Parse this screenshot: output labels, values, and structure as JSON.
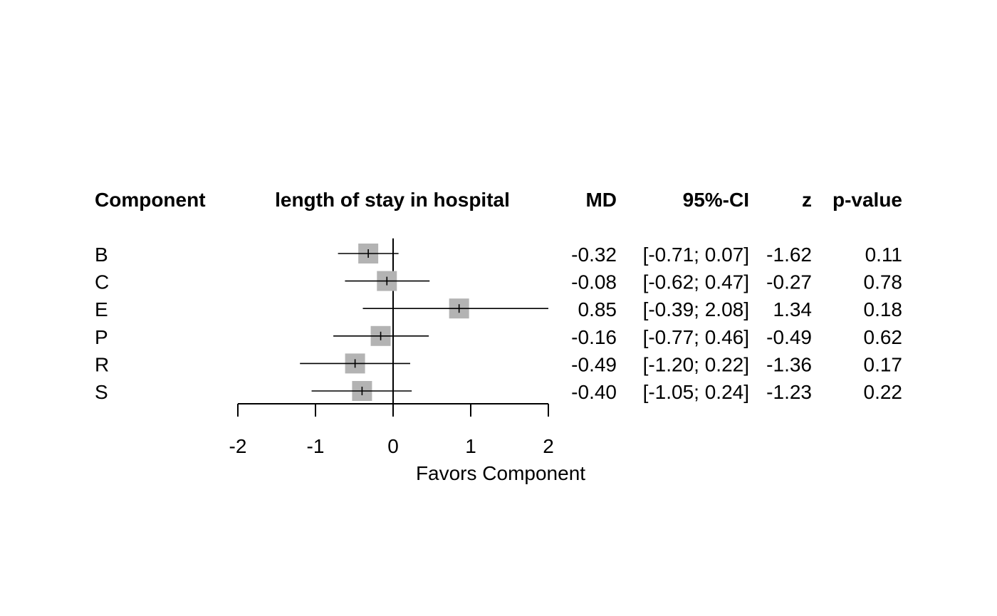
{
  "chart_data": {
    "type": "forest",
    "headers": {
      "component": "Component",
      "outcome": "length of stay in hospital",
      "md": "MD",
      "ci": "95%-CI",
      "z": "z",
      "p": "p-value"
    },
    "rows": [
      {
        "label": "B",
        "md": -0.32,
        "lower": -0.71,
        "upper": 0.07,
        "md_text": "-0.32",
        "ci_text": "[-0.71; 0.07]",
        "z_text": "-1.62",
        "p_text": "0.11"
      },
      {
        "label": "C",
        "md": -0.08,
        "lower": -0.62,
        "upper": 0.47,
        "md_text": "-0.08",
        "ci_text": "[-0.62; 0.47]",
        "z_text": "-0.27",
        "p_text": "0.78"
      },
      {
        "label": "E",
        "md": 0.85,
        "lower": -0.39,
        "upper": 2.08,
        "md_text": "0.85",
        "ci_text": "[-0.39; 2.08]",
        "z_text": "1.34",
        "p_text": "0.18"
      },
      {
        "label": "P",
        "md": -0.16,
        "lower": -0.77,
        "upper": 0.46,
        "md_text": "-0.16",
        "ci_text": "[-0.77; 0.46]",
        "z_text": "-0.49",
        "p_text": "0.62"
      },
      {
        "label": "R",
        "md": -0.49,
        "lower": -1.2,
        "upper": 0.22,
        "md_text": "-0.49",
        "ci_text": "[-1.20; 0.22]",
        "z_text": "-1.36",
        "p_text": "0.17"
      },
      {
        "label": "S",
        "md": -0.4,
        "lower": -1.05,
        "upper": 0.24,
        "md_text": "-0.40",
        "ci_text": "[-1.05; 0.24]",
        "z_text": "-1.23",
        "p_text": "0.22"
      }
    ],
    "x_ticks": [
      -2,
      -1,
      0,
      1,
      2
    ],
    "x_tick_labels": [
      "-2",
      "-1",
      "0",
      "1",
      "2"
    ],
    "xlim": [
      -2,
      2
    ],
    "reference_line": 0,
    "xlabel": "Favors Component",
    "marker_color": "#b3b3b3",
    "line_color": "#000000"
  }
}
